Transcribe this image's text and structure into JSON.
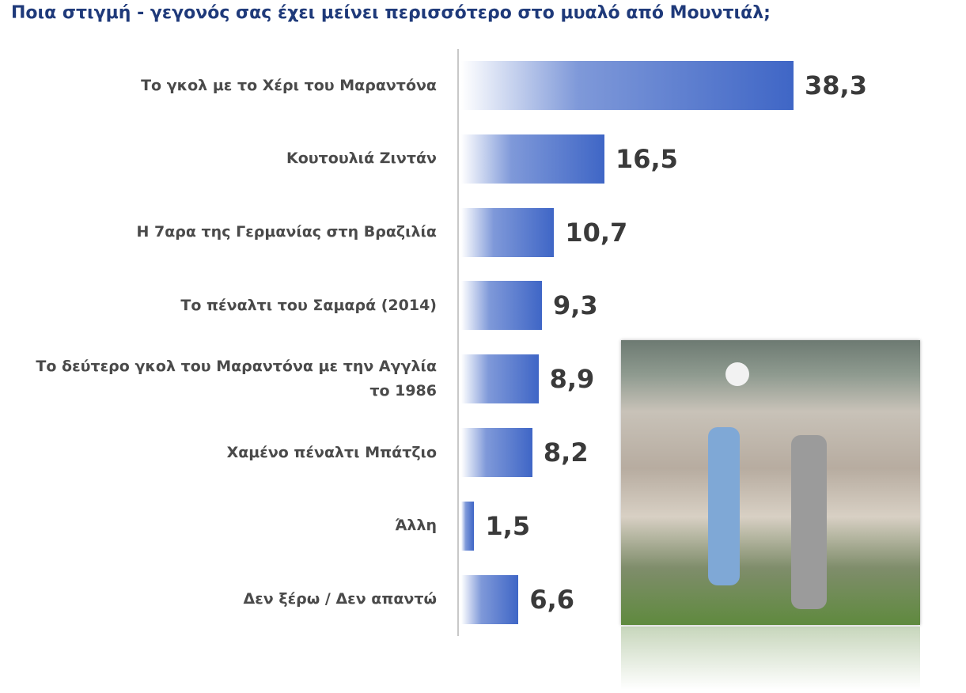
{
  "chart_data": {
    "type": "bar",
    "title": "Ποια στιγμή - γεγονός σας έχει μείνει περισσότερο στο μυαλό από Μουντιάλ;",
    "categories": [
      "Το γκολ με το Χέρι του Μαραντόνα",
      "Κουτουλιά Ζιντάν",
      "Η 7αρα της Γερμανίας στη Βραζιλία",
      "Το πέναλτι του Σαμαρά (2014)",
      "Το δεύτερο γκολ του Μαραντόνα με την Αγγλία το 1986",
      "Χαμένο πέναλτι Μπάτζιο",
      "Άλλη",
      "Δεν ξέρω / Δεν απαντώ"
    ],
    "values": [
      38.3,
      16.5,
      10.7,
      9.3,
      8.9,
      8.2,
      1.5,
      6.6
    ],
    "value_labels": [
      "38,3",
      "16,5",
      "10,7",
      "9,3",
      "8,9",
      "8,2",
      "1,5",
      "6,6"
    ],
    "color": "#3f66c6"
  }
}
